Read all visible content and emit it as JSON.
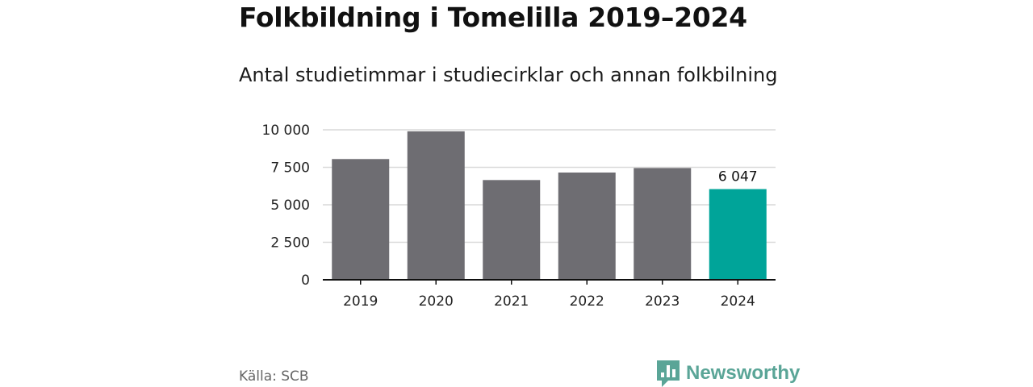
{
  "title": "Folkbildning i Tomelilla 2019–2024",
  "subtitle": "Antal studietimmar i studiecirklar och annan folkbilning",
  "source": "Källa: SCB",
  "brand": {
    "name": "Newsworthy",
    "color": "#5aa597",
    "icon": "newsworthy-logo-icon"
  },
  "colors": {
    "bar": "#6e6d72",
    "highlight": "#00a499",
    "grid": "#d9d9d9",
    "axis": "#111111"
  },
  "chart_data": {
    "type": "bar",
    "categories": [
      "2019",
      "2020",
      "2021",
      "2022",
      "2023",
      "2024"
    ],
    "values": [
      8050,
      9900,
      6650,
      7150,
      7450,
      6047
    ],
    "highlight_index": 5,
    "data_labels": [
      {
        "index": 5,
        "text": "6 047"
      }
    ],
    "title": "Folkbildning i Tomelilla 2019–2024",
    "subtitle": "Antal studietimmar i studiecirklar och annan folkbilning",
    "xlabel": "",
    "ylabel": "",
    "ylim": [
      0,
      10000
    ],
    "yticks": [
      {
        "value": 0,
        "label": "0"
      },
      {
        "value": 2500,
        "label": "2 500"
      },
      {
        "value": 5000,
        "label": "5 000"
      },
      {
        "value": 7500,
        "label": "7 500"
      },
      {
        "value": 10000,
        "label": "10 000"
      }
    ],
    "grid": true,
    "legend": "none"
  }
}
